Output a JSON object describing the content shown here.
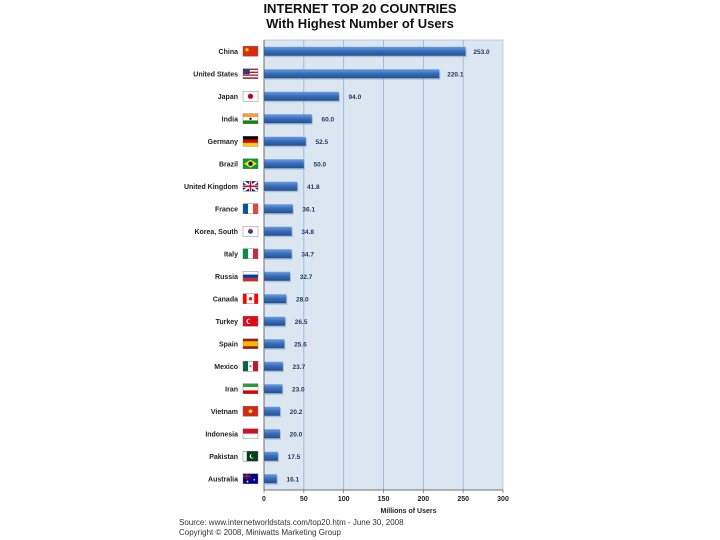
{
  "title_line1": "INTERNET TOP 20 COUNTRIES",
  "title_line2": "With Highest Number of Users",
  "source_line1": "Source: www.internetworldstats.com/top20.htm - June 30, 2008",
  "source_line2": "Copyright © 2008, Miniwatts Marketing Group",
  "colors": {
    "plot_bg": "#dce6f1",
    "bar": "#3a6fbf",
    "bar_dark": "#23508f",
    "grid": "#8fb0d8"
  },
  "chart_data": {
    "type": "bar",
    "orientation": "horizontal",
    "title": "INTERNET TOP 20 COUNTRIES With Highest Number of Users",
    "xlabel": "Millions of Users",
    "ylabel": "",
    "xlim": [
      0,
      300
    ],
    "xticks": [
      "0",
      "50",
      "100",
      "150",
      "200",
      "250",
      "300"
    ],
    "grid": true,
    "categories": [
      "China",
      "United States",
      "Japan",
      "India",
      "Germany",
      "Brazil",
      "United Kingdom",
      "France",
      "Korea, South",
      "Italy",
      "Russia",
      "Canada",
      "Turkey",
      "Spain",
      "Mexico",
      "Iran",
      "Vietnam",
      "Indonesia",
      "Pakistan",
      "Australia"
    ],
    "values": [
      253.0,
      220.1,
      94.0,
      60.0,
      52.5,
      50.0,
      41.8,
      36.1,
      34.8,
      34.7,
      32.7,
      28.0,
      26.5,
      25.6,
      23.7,
      23.0,
      20.2,
      20.0,
      17.5,
      16.1
    ],
    "value_labels": [
      "253.0",
      "220.1",
      "94.0",
      "60.0",
      "52.5",
      "50.0",
      "41.8",
      "36.1",
      "34.8",
      "34.7",
      "32.7",
      "28.0",
      "26.5",
      "25.6",
      "23.7",
      "23.0",
      "20.2",
      "20.0",
      "17.5",
      "16.1"
    ],
    "flags": [
      "china-flag-icon",
      "united-states-flag-icon",
      "japan-flag-icon",
      "india-flag-icon",
      "germany-flag-icon",
      "brazil-flag-icon",
      "united-kingdom-flag-icon",
      "france-flag-icon",
      "korea-south-flag-icon",
      "italy-flag-icon",
      "russia-flag-icon",
      "canada-flag-icon",
      "turkey-flag-icon",
      "spain-flag-icon",
      "mexico-flag-icon",
      "iran-flag-icon",
      "vietnam-flag-icon",
      "indonesia-flag-icon",
      "pakistan-flag-icon",
      "australia-flag-icon"
    ]
  }
}
